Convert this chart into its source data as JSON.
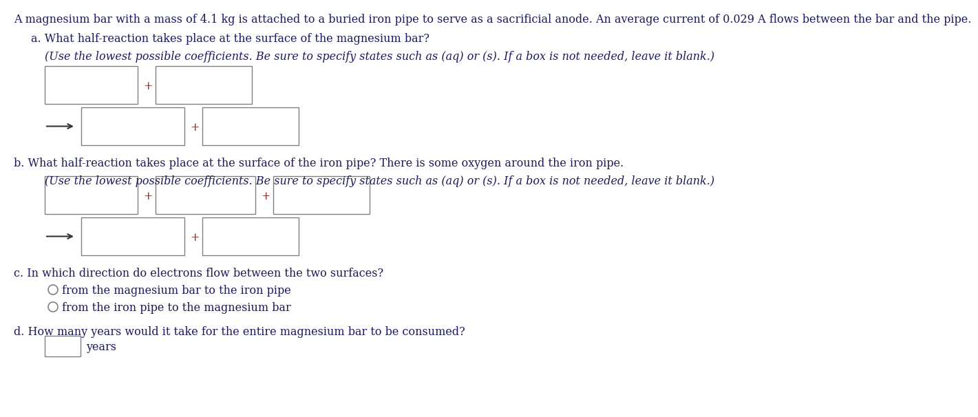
{
  "background_color": "#ffffff",
  "text_color": "#1a1a5e",
  "box_edge_color": "#808080",
  "plus_color": "#8B1A1A",
  "arrow_color": "#333333",
  "title_text": "A magnesium bar with a mass of 4.1 kg is attached to a buried iron pipe to serve as a sacrificial anode. An average current of 0.029 A flows between the bar and the pipe.",
  "section_a_label": "a. What half-reaction takes place at the surface of the magnesium bar?",
  "section_a_instruction": "(Use the lowest possible coefficients. Be sure to specify states such as (aq) or (s). If a box is not needed, leave it blank.)",
  "section_b_label": "b. What half-reaction takes place at the surface of the iron pipe? There is some oxygen around the iron pipe.",
  "section_b_instruction": "(Use the lowest possible coefficients. Be sure to specify states such as (aq) or (s). If a box is not needed, leave it blank.)",
  "section_c_label": "c. In which direction do electrons flow between the two surfaces?",
  "section_c_option1": "from the magnesium bar to the iron pipe",
  "section_c_option2": "from the iron pipe to the magnesium bar",
  "section_d_label": "d. How many years would it take for the entire magnesium bar to be consumed?",
  "section_d_unit": "years",
  "font_size_title": 11.5,
  "font_size_body": 11.5,
  "font_size_instruction": 11.5
}
